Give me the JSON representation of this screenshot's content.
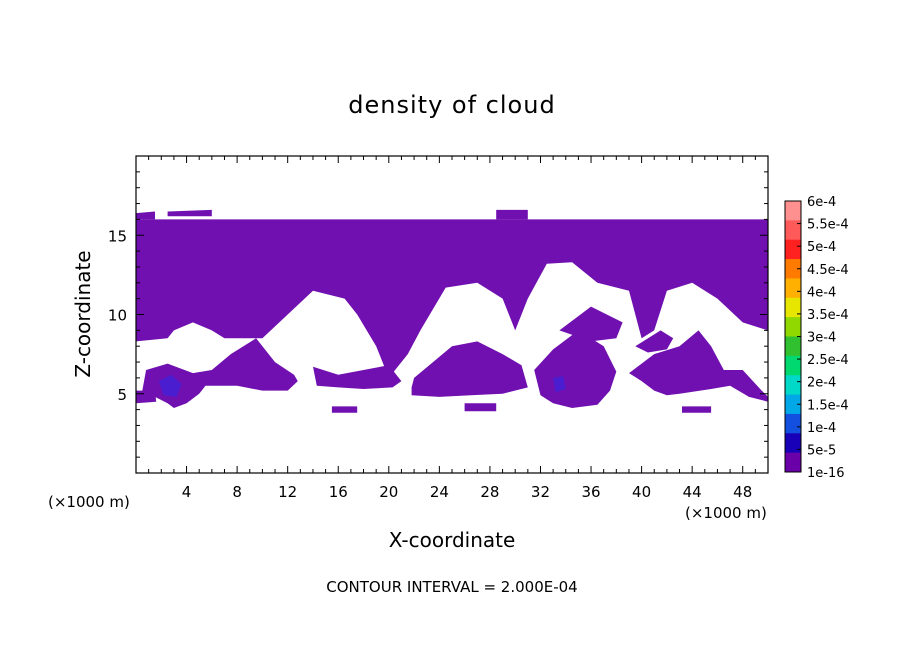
{
  "chart_data": {
    "type": "contour",
    "title": "density of cloud",
    "xlabel": "X-coordinate",
    "ylabel": "Z-coordinate",
    "x_unit_label": "(×1000 m)",
    "x_unit_label_right": "(×1000 m)",
    "footer": "CONTOUR INTERVAL = 2.000E-04",
    "xlim": [
      0,
      50
    ],
    "ylim": [
      0,
      20
    ],
    "x_ticks": [
      4,
      8,
      12,
      16,
      20,
      24,
      28,
      32,
      36,
      40,
      44,
      48
    ],
    "y_ticks": [
      5,
      10,
      15
    ],
    "fill_color": "#7010b0",
    "dense_color": "#4a1ed0",
    "colorbar": {
      "labels": [
        "6e-4",
        "5.5e-4",
        "5e-4",
        "4.5e-4",
        "4e-4",
        "3.5e-4",
        "3e-4",
        "2.5e-4",
        "2e-4",
        "1.5e-4",
        "1e-4",
        "5e-5",
        "1e-16"
      ],
      "colors": [
        "#ff9090",
        "#ff5a5a",
        "#ff2020",
        "#ff7a00",
        "#ffb000",
        "#e6e600",
        "#90d800",
        "#30c030",
        "#00d870",
        "#00d8c8",
        "#00a8e8",
        "#1450e0",
        "#1800b8",
        "#6a00a8"
      ]
    },
    "regions": [
      {
        "name": "main-cloud-band",
        "points": [
          [
            0,
            16
          ],
          [
            50,
            16
          ],
          [
            50,
            9
          ],
          [
            48,
            9.5
          ],
          [
            46,
            11
          ],
          [
            44,
            12
          ],
          [
            42,
            11.5
          ],
          [
            41,
            9
          ],
          [
            40,
            8.5
          ],
          [
            39,
            11.5
          ],
          [
            36.5,
            12
          ],
          [
            34.5,
            13.3
          ],
          [
            32.5,
            13.2
          ],
          [
            31,
            11
          ],
          [
            30,
            9
          ],
          [
            29,
            11
          ],
          [
            27,
            12
          ],
          [
            24.5,
            11.7
          ],
          [
            22.5,
            9
          ],
          [
            21.5,
            7.5
          ],
          [
            20,
            6
          ],
          [
            19,
            8
          ],
          [
            17.5,
            10
          ],
          [
            16.5,
            11
          ],
          [
            14,
            11.5
          ],
          [
            12,
            10
          ],
          [
            10,
            8.5
          ],
          [
            7,
            8.5
          ],
          [
            6,
            9
          ],
          [
            4.5,
            9.5
          ],
          [
            3,
            9
          ],
          [
            2.5,
            8.5
          ],
          [
            0,
            8.3
          ]
        ]
      },
      {
        "name": "cloud-lower-left",
        "points": [
          [
            0.8,
            6.5
          ],
          [
            2.5,
            6.9
          ],
          [
            4.5,
            6.3
          ],
          [
            6,
            6.5
          ],
          [
            7.5,
            7.5
          ],
          [
            9.5,
            8.5
          ],
          [
            11,
            7
          ],
          [
            12.5,
            6.2
          ],
          [
            12.8,
            5.8
          ],
          [
            12,
            5.2
          ],
          [
            10,
            5.2
          ],
          [
            8,
            5.5
          ],
          [
            6.5,
            5.5
          ],
          [
            5.5,
            5.5
          ],
          [
            5,
            5
          ],
          [
            4,
            4.4
          ],
          [
            3,
            4.1
          ],
          [
            2.5,
            4.4
          ],
          [
            1.5,
            4.8
          ],
          [
            0.5,
            5.2
          ]
        ]
      },
      {
        "name": "cloud-left-edge",
        "points": [
          [
            0,
            5.2
          ],
          [
            1.5,
            5.2
          ],
          [
            1.6,
            4.5
          ],
          [
            0,
            4.4
          ]
        ]
      },
      {
        "name": "cloud-center-left",
        "points": [
          [
            14,
            6.7
          ],
          [
            16,
            6.2
          ],
          [
            18,
            6.5
          ],
          [
            20,
            6.8
          ],
          [
            21,
            5.8
          ],
          [
            20.3,
            5.4
          ],
          [
            18,
            5.3
          ],
          [
            16,
            5.4
          ],
          [
            14.3,
            5.5
          ]
        ]
      },
      {
        "name": "cloud-center",
        "points": [
          [
            22,
            6
          ],
          [
            23.5,
            7
          ],
          [
            25,
            8
          ],
          [
            27,
            8.3
          ],
          [
            29,
            7.5
          ],
          [
            30.5,
            6.8
          ],
          [
            31,
            5.4
          ],
          [
            29,
            5
          ],
          [
            26.5,
            4.9
          ],
          [
            24,
            4.8
          ],
          [
            21.8,
            4.9
          ],
          [
            21.8,
            5.4
          ]
        ]
      },
      {
        "name": "cloud-center-right",
        "points": [
          [
            31.5,
            6.5
          ],
          [
            33,
            7.8
          ],
          [
            35,
            9
          ],
          [
            37,
            8
          ],
          [
            38,
            6.4
          ],
          [
            37.5,
            5.2
          ],
          [
            36.5,
            4.3
          ],
          [
            34.5,
            4.1
          ],
          [
            33,
            4.4
          ],
          [
            32,
            4.9
          ]
        ]
      },
      {
        "name": "cloud-right",
        "points": [
          [
            39,
            6.3
          ],
          [
            41,
            7.5
          ],
          [
            43,
            8
          ],
          [
            44.5,
            9
          ],
          [
            45.5,
            8
          ],
          [
            46.5,
            6.5
          ],
          [
            48,
            6.5
          ],
          [
            49.5,
            5.2
          ],
          [
            50,
            4.8
          ],
          [
            50,
            4.5
          ],
          [
            48.5,
            4.8
          ],
          [
            47,
            5.5
          ],
          [
            45.5,
            5.3
          ],
          [
            43,
            5
          ],
          [
            42,
            4.9
          ],
          [
            41,
            5.2
          ],
          [
            40,
            5.8
          ]
        ]
      },
      {
        "name": "cloud-small-right-1",
        "points": [
          [
            33.5,
            9
          ],
          [
            36,
            10.5
          ],
          [
            38.5,
            9.5
          ],
          [
            38,
            8.5
          ],
          [
            36,
            8.3
          ]
        ]
      },
      {
        "name": "cloud-small-right-2",
        "points": [
          [
            39.5,
            8
          ],
          [
            41.5,
            9
          ],
          [
            42.5,
            8.5
          ],
          [
            42,
            7.8
          ],
          [
            40.5,
            7.6
          ]
        ]
      },
      {
        "name": "cloud-patch-low-1",
        "points": [
          [
            15.5,
            4.2
          ],
          [
            17.5,
            4.2
          ],
          [
            17.5,
            3.8
          ],
          [
            15.5,
            3.8
          ]
        ]
      },
      {
        "name": "cloud-patch-low-2",
        "points": [
          [
            26,
            4.4
          ],
          [
            28.5,
            4.4
          ],
          [
            28.5,
            3.9
          ],
          [
            26,
            3.9
          ]
        ]
      },
      {
        "name": "cloud-patch-low-3",
        "points": [
          [
            43.2,
            4.2
          ],
          [
            45.5,
            4.2
          ],
          [
            45.5,
            3.8
          ],
          [
            43.2,
            3.8
          ]
        ]
      },
      {
        "name": "cloud-top-fringe-1",
        "points": [
          [
            0,
            16.4
          ],
          [
            1.5,
            16.5
          ],
          [
            1.5,
            16
          ],
          [
            0,
            16
          ]
        ]
      },
      {
        "name": "cloud-top-fringe-2",
        "points": [
          [
            2.5,
            16.5
          ],
          [
            6,
            16.6
          ],
          [
            6,
            16.2
          ],
          [
            2.5,
            16.2
          ]
        ]
      },
      {
        "name": "cloud-top-fringe-3",
        "points": [
          [
            28.5,
            16.6
          ],
          [
            31,
            16.6
          ],
          [
            31,
            16
          ],
          [
            28.5,
            16
          ]
        ]
      }
    ],
    "dense_spots": [
      {
        "name": "dense-spot-1",
        "points": [
          [
            1.8,
            5.8
          ],
          [
            2.8,
            6.2
          ],
          [
            3.6,
            5.6
          ],
          [
            3.2,
            4.8
          ],
          [
            2.2,
            4.9
          ]
        ]
      },
      {
        "name": "dense-spot-2",
        "points": [
          [
            33,
            6
          ],
          [
            33.8,
            6.1
          ],
          [
            34,
            5.3
          ],
          [
            33.2,
            5.1
          ]
        ]
      }
    ]
  }
}
